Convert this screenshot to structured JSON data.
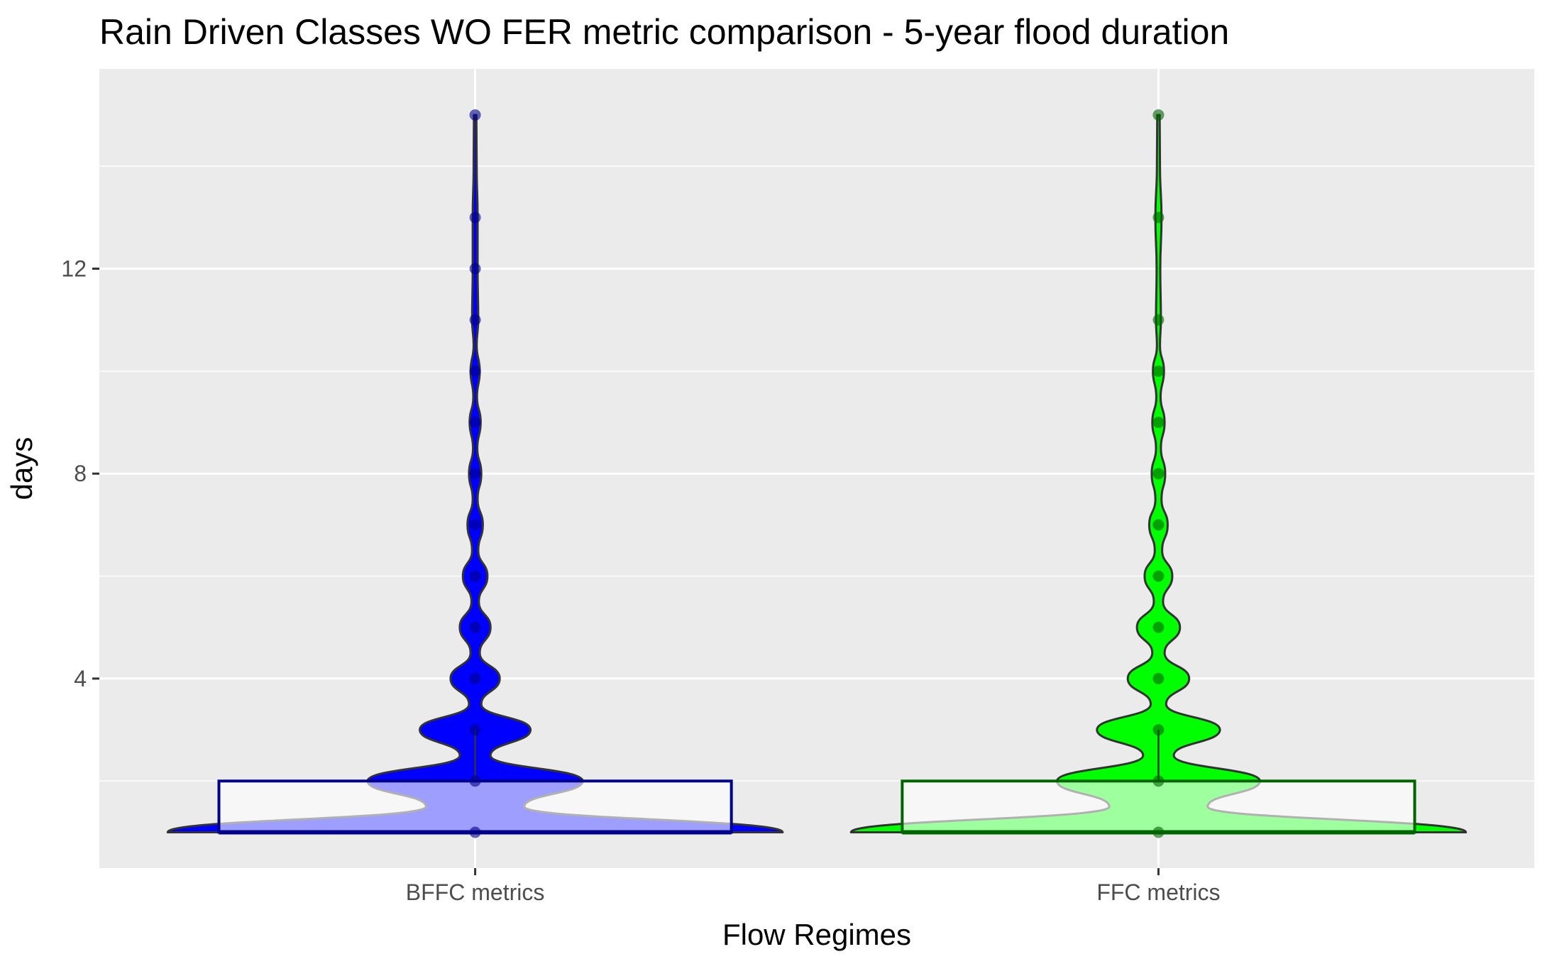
{
  "chart_data": {
    "type": "violin",
    "title": "Rain Driven Classes WO FER metric comparison  - 5-year flood duration",
    "xlabel": "Flow Regimes",
    "ylabel": "days",
    "ylim": [
      0.3,
      15.9
    ],
    "yticks": [
      4,
      8,
      12
    ],
    "grid": true,
    "categories": [
      "BFFC metrics",
      "FFC metrics"
    ],
    "series": [
      {
        "fill": "#0000ff",
        "point_color": "#00008b",
        "box_color": "#00008b",
        "box": {
          "q1": 1,
          "median": 1,
          "q3": 2,
          "whisker_low": 1,
          "whisker_high": 3
        },
        "points": [
          1,
          2,
          3,
          4,
          5,
          6,
          7,
          8,
          9,
          10,
          11,
          12,
          13,
          15
        ],
        "density": [
          [
            1,
            1.0
          ],
          [
            1.5,
            0.16
          ],
          [
            2,
            0.35
          ],
          [
            2.5,
            0.05
          ],
          [
            3,
            0.18
          ],
          [
            3.5,
            0.02
          ],
          [
            4,
            0.08
          ],
          [
            4.5,
            0.015
          ],
          [
            5,
            0.05
          ],
          [
            5.5,
            0.012
          ],
          [
            6,
            0.04
          ],
          [
            6.5,
            0.01
          ],
          [
            7,
            0.025
          ],
          [
            7.5,
            0.008
          ],
          [
            8,
            0.02
          ],
          [
            8.5,
            0.007
          ],
          [
            9,
            0.018
          ],
          [
            9.5,
            0.006
          ],
          [
            10,
            0.015
          ],
          [
            10.5,
            0.005
          ],
          [
            11,
            0.01
          ],
          [
            12,
            0.008
          ],
          [
            13,
            0.008
          ],
          [
            14,
            0.005
          ],
          [
            15,
            0.004
          ]
        ]
      },
      {
        "fill": "#00ff00",
        "point_color": "#006400",
        "box_color": "#006400",
        "box": {
          "q1": 1,
          "median": 1,
          "q3": 2,
          "whisker_low": 1,
          "whisker_high": 3
        },
        "points": [
          1,
          2,
          3,
          4,
          5,
          6,
          7,
          8,
          9,
          10,
          11,
          13,
          15
        ],
        "density": [
          [
            1,
            1.0
          ],
          [
            1.5,
            0.16
          ],
          [
            2,
            0.33
          ],
          [
            2.5,
            0.05
          ],
          [
            3,
            0.2
          ],
          [
            3.5,
            0.025
          ],
          [
            4,
            0.1
          ],
          [
            4.5,
            0.02
          ],
          [
            5,
            0.07
          ],
          [
            5.5,
            0.015
          ],
          [
            6,
            0.045
          ],
          [
            6.5,
            0.012
          ],
          [
            7,
            0.03
          ],
          [
            7.5,
            0.01
          ],
          [
            8,
            0.022
          ],
          [
            8.5,
            0.008
          ],
          [
            9,
            0.02
          ],
          [
            9.5,
            0.007
          ],
          [
            10,
            0.018
          ],
          [
            10.5,
            0.005
          ],
          [
            11,
            0.008
          ],
          [
            12,
            0.006
          ],
          [
            13,
            0.01
          ],
          [
            14,
            0.005
          ],
          [
            15,
            0.004
          ]
        ]
      }
    ]
  }
}
